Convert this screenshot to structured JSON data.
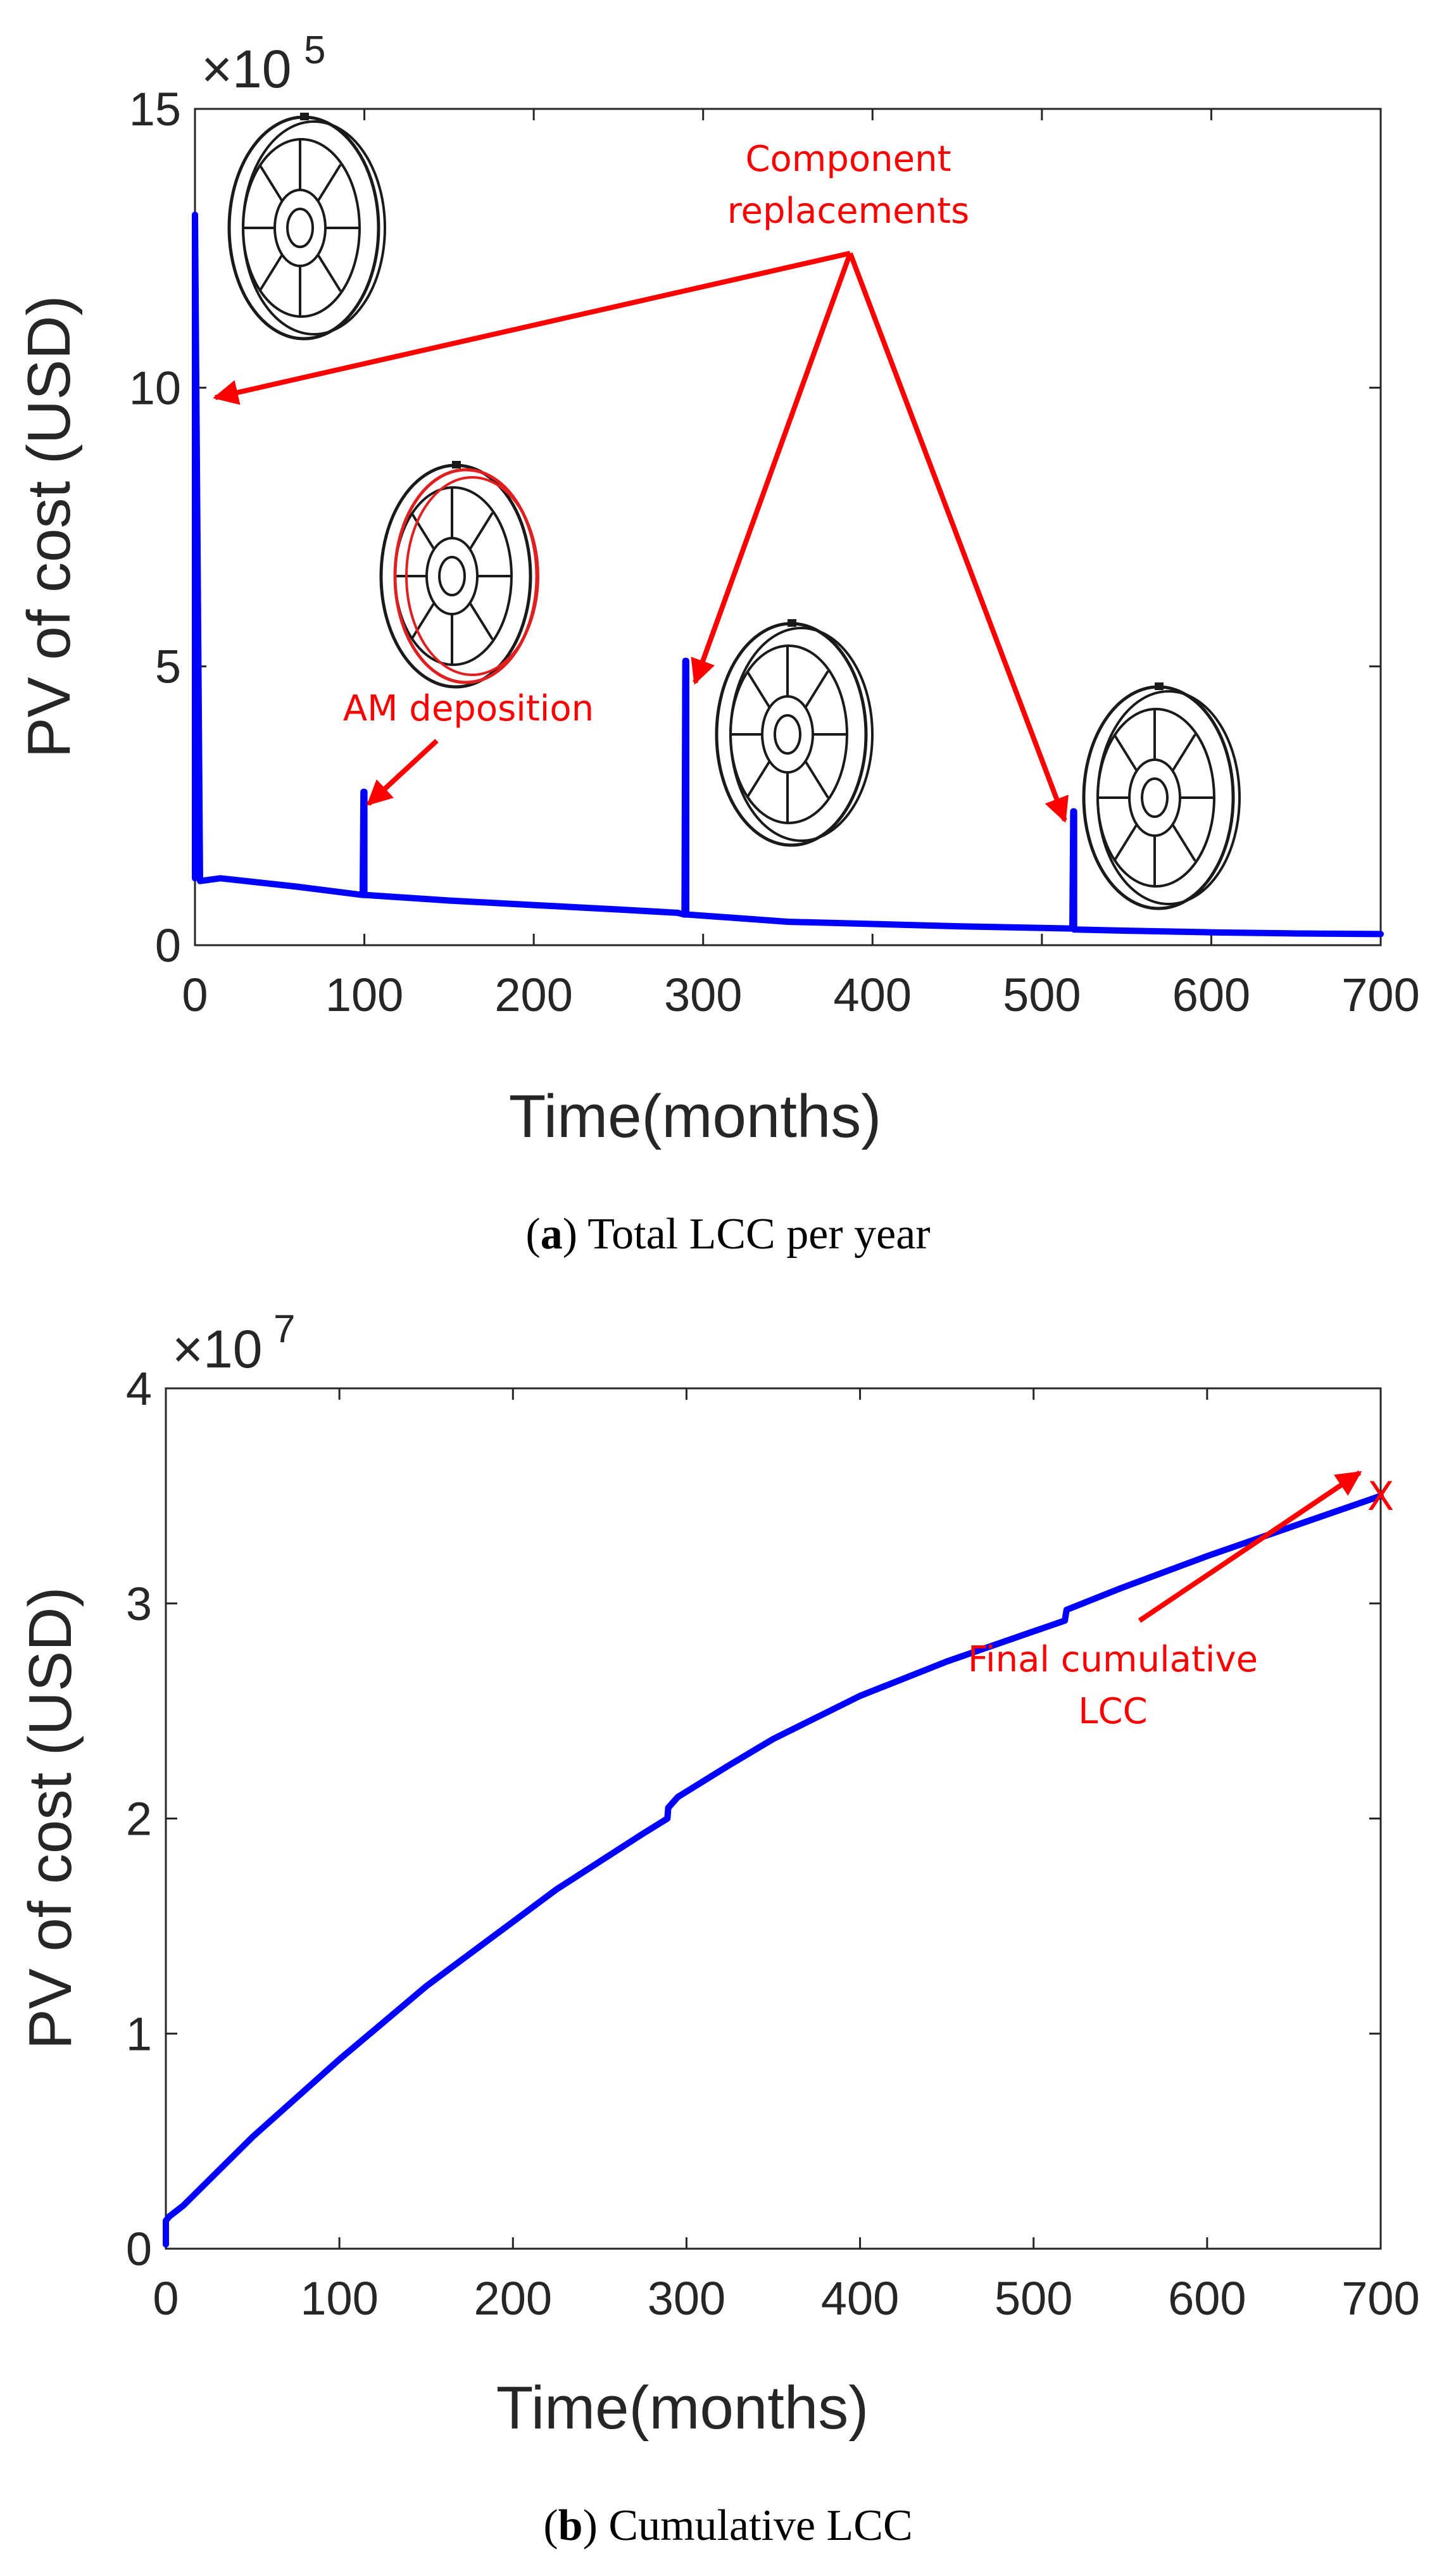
{
  "colors": {
    "series": "#0000ff",
    "annotation": "#ff0000",
    "axis": "#262626"
  },
  "chart_data": [
    {
      "type": "line",
      "caption_label": "a",
      "caption_text": "Total LCC per year",
      "xlabel": "Time(months)",
      "ylabel": "PV of cost (USD)",
      "y_exponent_base": "×10",
      "y_exponent_power": "5",
      "xlim": [
        0,
        700
      ],
      "ylim": [
        0,
        15
      ],
      "xticks": [
        0,
        100,
        200,
        300,
        400,
        500,
        600,
        700
      ],
      "yticks": [
        0,
        5,
        10,
        15
      ],
      "grid": false,
      "series": [
        {
          "name": "Total LCC per year",
          "x": [
            0,
            0,
            3,
            15,
            30,
            60,
            99,
            99.5,
            100,
            100,
            100.5,
            101,
            150,
            200,
            250,
            285,
            289,
            289.5,
            290,
            290,
            291,
            350,
            400,
            450,
            516,
            518,
            518.5,
            519,
            519,
            520,
            550,
            600,
            650,
            700
          ],
          "y": [
            1.2,
            13.1,
            1.15,
            1.2,
            1.15,
            1.05,
            0.9,
            2.75,
            2.75,
            0.9,
            0.9,
            0.9,
            0.8,
            0.72,
            0.64,
            0.58,
            0.55,
            5.1,
            5.1,
            0.55,
            0.55,
            0.42,
            0.38,
            0.34,
            0.3,
            0.3,
            2.4,
            2.4,
            0.28,
            0.28,
            0.26,
            0.23,
            0.21,
            0.2
          ]
        }
      ],
      "annotations": {
        "component_replacements_line1": "Component",
        "component_replacements_line2": "replacements",
        "am_deposition": "AM deposition"
      }
    },
    {
      "type": "line",
      "caption_label": "b",
      "caption_text": "Cumulative LCC",
      "xlabel": "Time(months)",
      "ylabel": "PV of cost (USD)",
      "y_exponent_base": "×10",
      "y_exponent_power": "7",
      "xlim": [
        0,
        700
      ],
      "ylim": [
        0,
        4
      ],
      "xticks": [
        0,
        100,
        200,
        300,
        400,
        500,
        600,
        700
      ],
      "yticks": [
        0,
        1,
        2,
        3,
        4
      ],
      "grid": false,
      "series": [
        {
          "name": "Cumulative LCC",
          "x": [
            0,
            0,
            2,
            10,
            25,
            50,
            75,
            100,
            125,
            150,
            175,
            200,
            225,
            250,
            275,
            289,
            289.5,
            295,
            325,
            350,
            375,
            400,
            450,
            500,
            518,
            519,
            550,
            600,
            650,
            700
          ],
          "y": [
            0.02,
            0.13,
            0.15,
            0.2,
            0.32,
            0.52,
            0.7,
            0.88,
            1.05,
            1.22,
            1.37,
            1.52,
            1.67,
            1.8,
            1.93,
            2.0,
            2.05,
            2.1,
            2.25,
            2.37,
            2.47,
            2.57,
            2.73,
            2.87,
            2.92,
            2.97,
            3.07,
            3.22,
            3.36,
            3.5
          ]
        }
      ],
      "final_marker": "X",
      "annotations": {
        "final_cumulative_line1": "Final cumulative",
        "final_cumulative_line2": "LCC"
      }
    }
  ]
}
